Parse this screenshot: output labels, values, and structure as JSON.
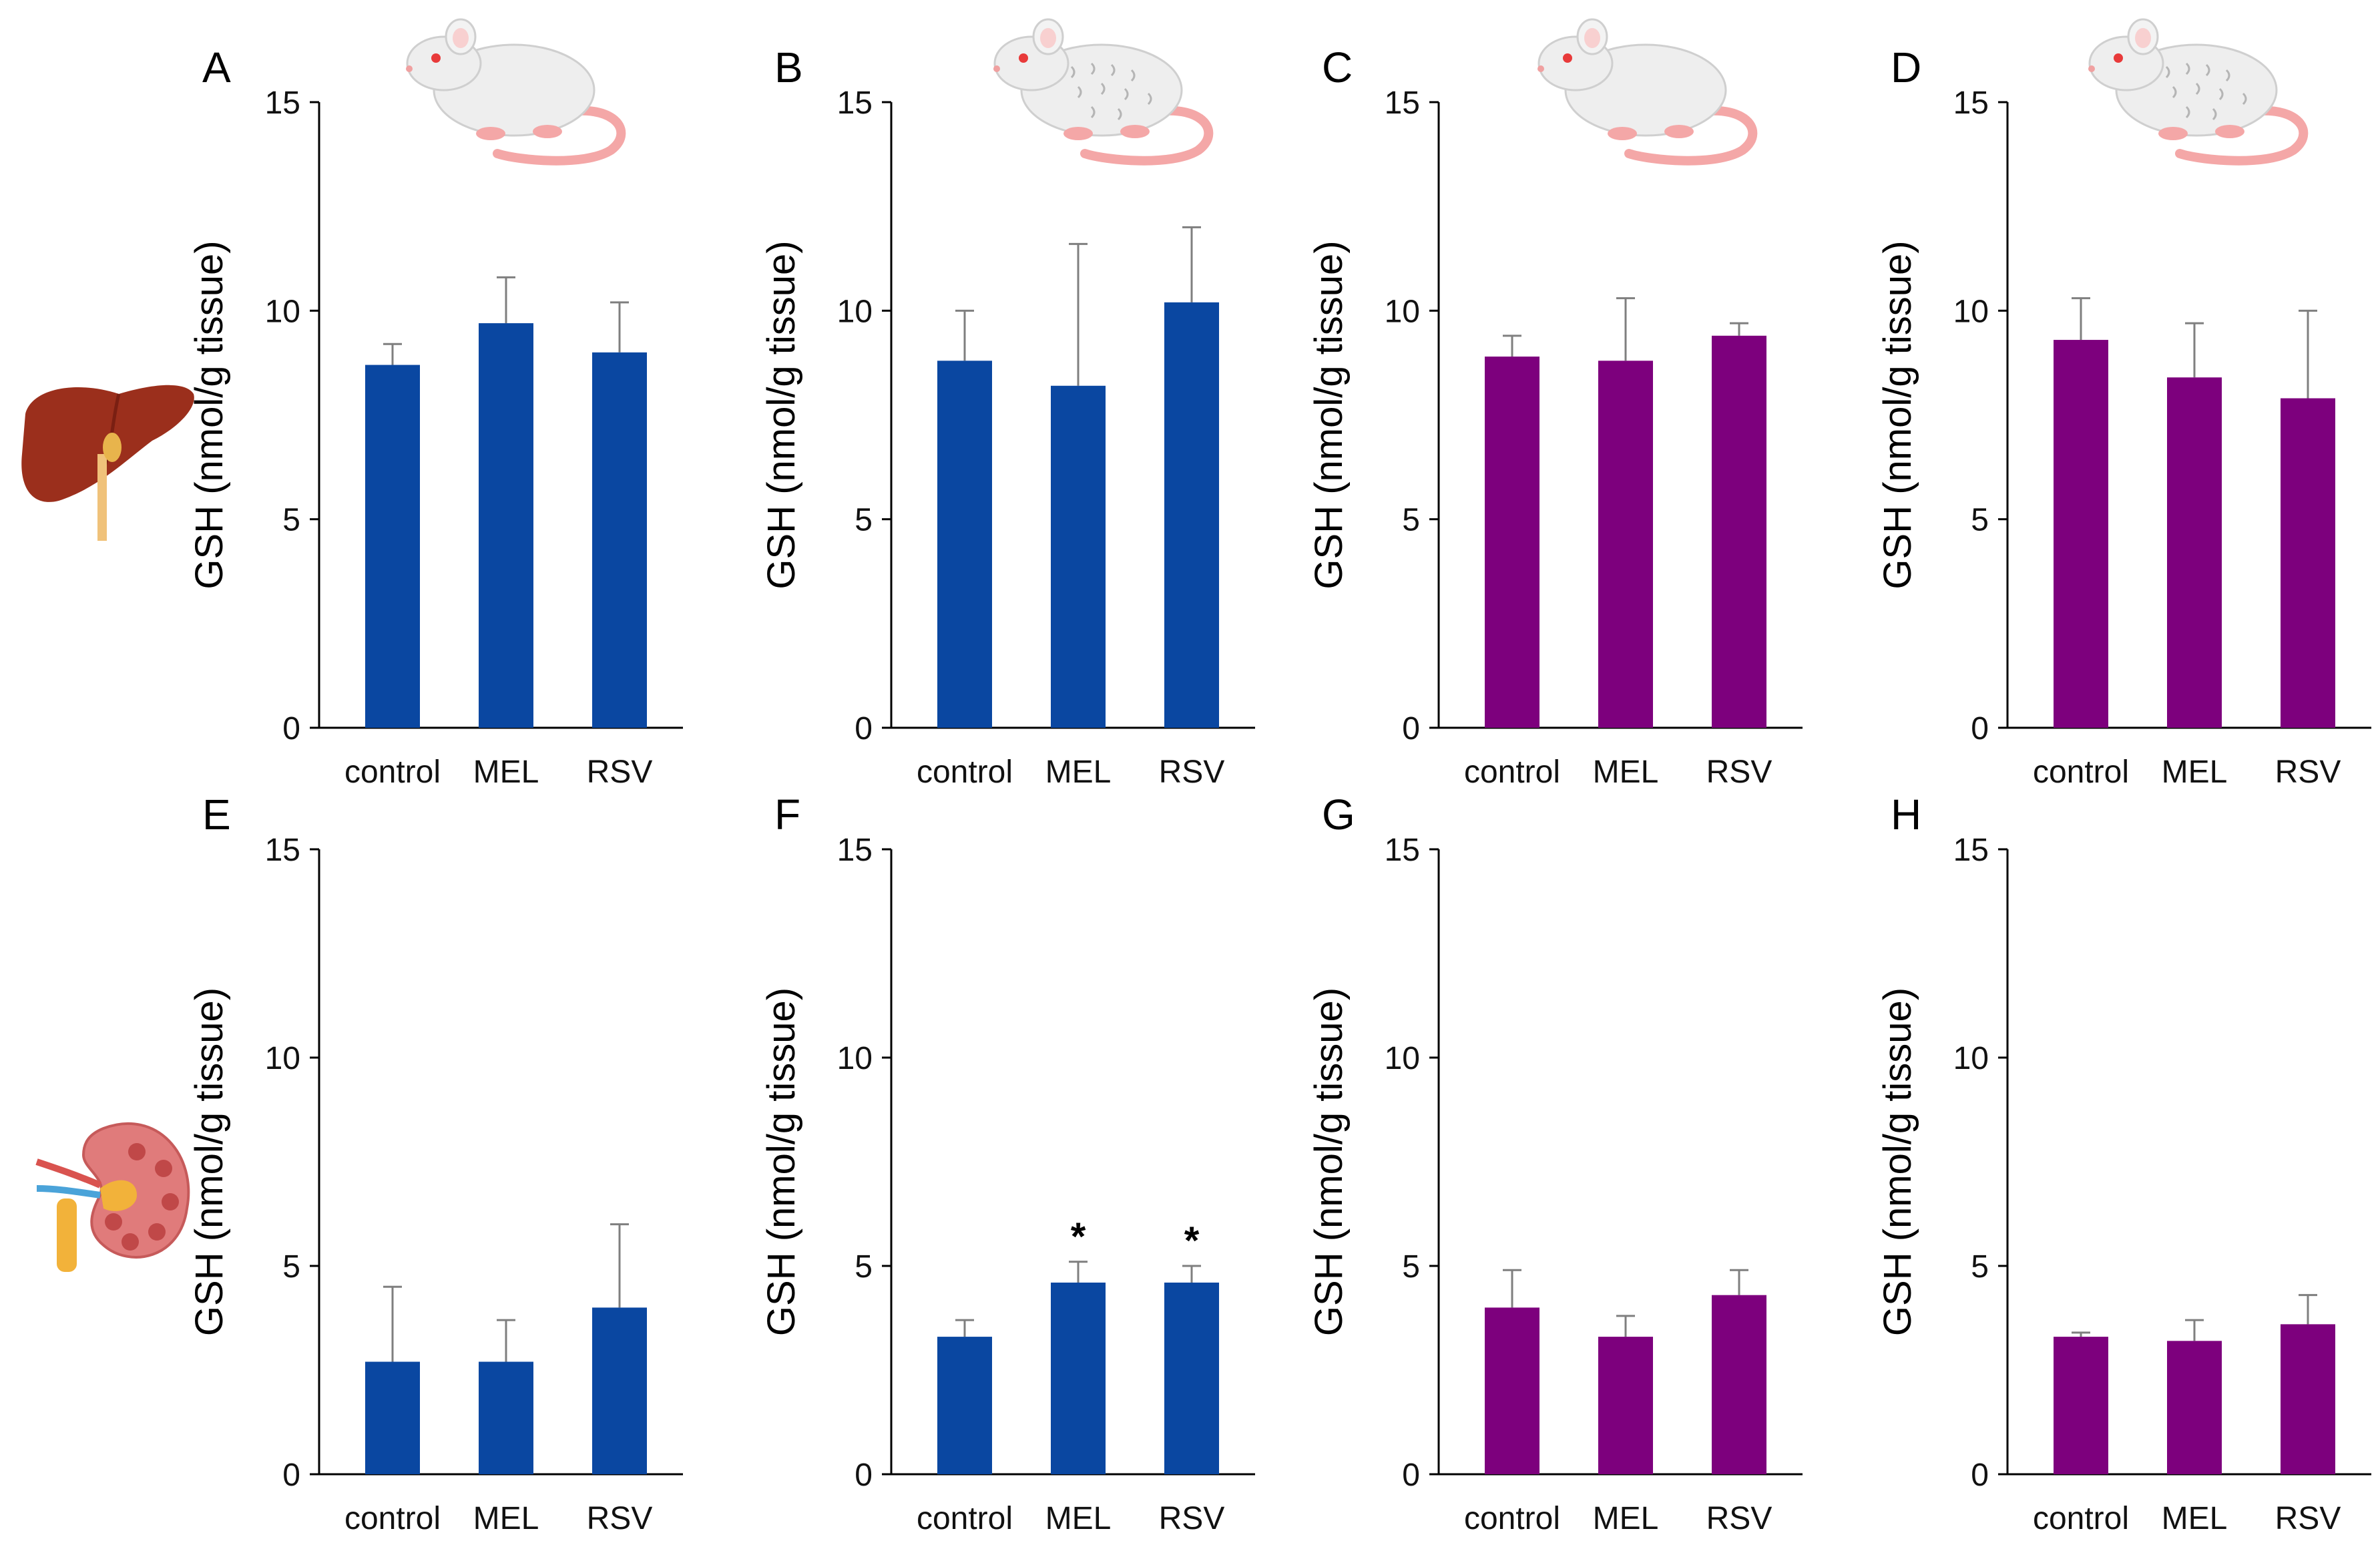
{
  "figure": {
    "organ_icons": [
      {
        "name": "liver-icon",
        "row": 0
      },
      {
        "name": "kidney-icon",
        "row": 1
      }
    ],
    "rat_icons": [
      {
        "name": "rat-smooth-icon",
        "panel": "A"
      },
      {
        "name": "rat-wrinkled-icon",
        "panel": "B"
      },
      {
        "name": "rat-smooth-icon",
        "panel": "C"
      },
      {
        "name": "rat-wrinkled-icon",
        "panel": "D"
      }
    ]
  },
  "colors": {
    "blue": "#0A47A1",
    "purple": "#7D007D",
    "axis": "#000000",
    "error_bar": "#7f7f7f",
    "liver": "#9b2f1c",
    "kidney": "#e07b7b",
    "rat_body": "#eeeeee",
    "rat_tail": "#f4a7a7"
  },
  "chart_data": [
    {
      "panel": "A",
      "type": "bar",
      "color": "blue",
      "categories": [
        "control",
        "MEL",
        "RSV"
      ],
      "values": [
        8.7,
        9.7,
        9.0
      ],
      "errors": [
        0.5,
        1.1,
        1.2
      ],
      "significance": [
        "",
        "",
        ""
      ],
      "ylabel": "GSH (nmol/g tissue)",
      "ylim": [
        0,
        15
      ],
      "yticks": [
        "0",
        "5",
        "10",
        "15"
      ]
    },
    {
      "panel": "B",
      "type": "bar",
      "color": "blue",
      "categories": [
        "control",
        "MEL",
        "RSV"
      ],
      "values": [
        8.8,
        8.2,
        10.2
      ],
      "errors": [
        1.2,
        3.4,
        1.8
      ],
      "significance": [
        "",
        "",
        ""
      ],
      "ylabel": "GSH (nmol/g tissue)",
      "ylim": [
        0,
        15
      ],
      "yticks": [
        "0",
        "5",
        "10",
        "15"
      ]
    },
    {
      "panel": "C",
      "type": "bar",
      "color": "purple",
      "categories": [
        "control",
        "MEL",
        "RSV"
      ],
      "values": [
        8.9,
        8.8,
        9.4
      ],
      "errors": [
        0.5,
        1.5,
        0.3
      ],
      "significance": [
        "",
        "",
        ""
      ],
      "ylabel": "GSH (nmol/g tissue)",
      "ylim": [
        0,
        15
      ],
      "yticks": [
        "0",
        "5",
        "10",
        "15"
      ]
    },
    {
      "panel": "D",
      "type": "bar",
      "color": "purple",
      "categories": [
        "control",
        "MEL",
        "RSV"
      ],
      "values": [
        9.3,
        8.4,
        7.9
      ],
      "errors": [
        1.0,
        1.3,
        2.1
      ],
      "significance": [
        "",
        "",
        ""
      ],
      "ylabel": "GSH (nmol/g tissue)",
      "ylim": [
        0,
        15
      ],
      "yticks": [
        "0",
        "5",
        "10",
        "15"
      ]
    },
    {
      "panel": "E",
      "type": "bar",
      "color": "blue",
      "categories": [
        "control",
        "MEL",
        "RSV"
      ],
      "values": [
        2.7,
        2.7,
        4.0
      ],
      "errors": [
        1.8,
        1.0,
        2.0
      ],
      "significance": [
        "",
        "",
        ""
      ],
      "ylabel": "GSH (nmol/g tissue)",
      "ylim": [
        0,
        15
      ],
      "yticks": [
        "0",
        "5",
        "10",
        "15"
      ]
    },
    {
      "panel": "F",
      "type": "bar",
      "color": "blue",
      "categories": [
        "control",
        "MEL",
        "RSV"
      ],
      "values": [
        3.3,
        4.6,
        4.6
      ],
      "errors": [
        0.4,
        0.5,
        0.4
      ],
      "significance": [
        "",
        "*",
        "*"
      ],
      "ylabel": "GSH (nmol/g tissue)",
      "ylim": [
        0,
        15
      ],
      "yticks": [
        "0",
        "5",
        "10",
        "15"
      ]
    },
    {
      "panel": "G",
      "type": "bar",
      "color": "purple",
      "categories": [
        "control",
        "MEL",
        "RSV"
      ],
      "values": [
        4.0,
        3.3,
        4.3
      ],
      "errors": [
        0.9,
        0.5,
        0.6
      ],
      "significance": [
        "",
        "",
        ""
      ],
      "ylabel": "GSH (nmol/g tissue)",
      "ylim": [
        0,
        15
      ],
      "yticks": [
        "0",
        "5",
        "10",
        "15"
      ]
    },
    {
      "panel": "H",
      "type": "bar",
      "color": "purple",
      "categories": [
        "control",
        "MEL",
        "RSV"
      ],
      "values": [
        3.3,
        3.2,
        3.6
      ],
      "errors": [
        0.1,
        0.5,
        0.7
      ],
      "significance": [
        "",
        "",
        ""
      ],
      "ylabel": "GSH (nmol/g tissue)",
      "ylim": [
        0,
        15
      ],
      "yticks": [
        "0",
        "5",
        "10",
        "15"
      ]
    }
  ]
}
